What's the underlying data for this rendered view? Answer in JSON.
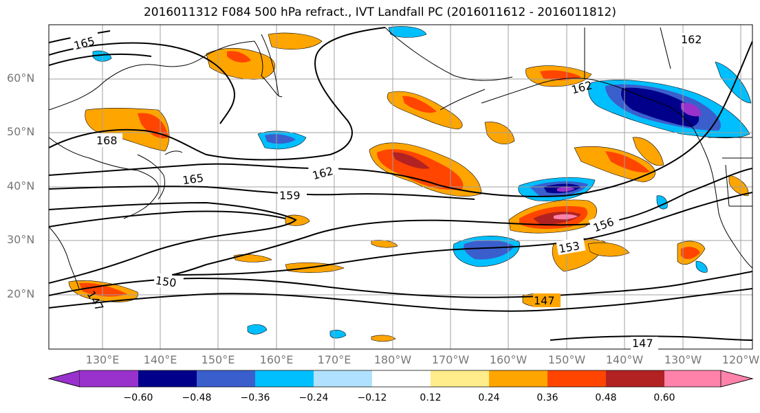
{
  "title": "2016011312 F084 500 hPa refract., IVT Landfall PC (2016011612 - 2016011812)",
  "latitude_labels": [
    "60°N",
    "50°N",
    "40°N",
    "30°N",
    "20°N"
  ],
  "longitude_labels": [
    "130°E",
    "140°E",
    "150°E",
    "160°E",
    "170°E",
    "180°W",
    "170°W",
    "160°W",
    "150°W",
    "140°W",
    "130°W",
    "120°W"
  ],
  "contour_labels": [
    "165",
    "168",
    "165",
    "162",
    "159",
    "156",
    "153",
    "150",
    "147",
    "147",
    "147",
    "162",
    "162"
  ],
  "colorbar": {
    "ticks": [
      "−0.60",
      "−0.48",
      "−0.36",
      "−0.24",
      "−0.12",
      "0.12",
      "0.24",
      "0.36",
      "0.48",
      "0.60"
    ],
    "colors": [
      "#9932cc",
      "#00008b",
      "#3a5fcd",
      "#00bfff",
      "#b0e2ff",
      "#ffffff",
      "#ffec8b",
      "#ffa500",
      "#ff4500",
      "#b22222",
      "#ff82ab"
    ]
  }
}
